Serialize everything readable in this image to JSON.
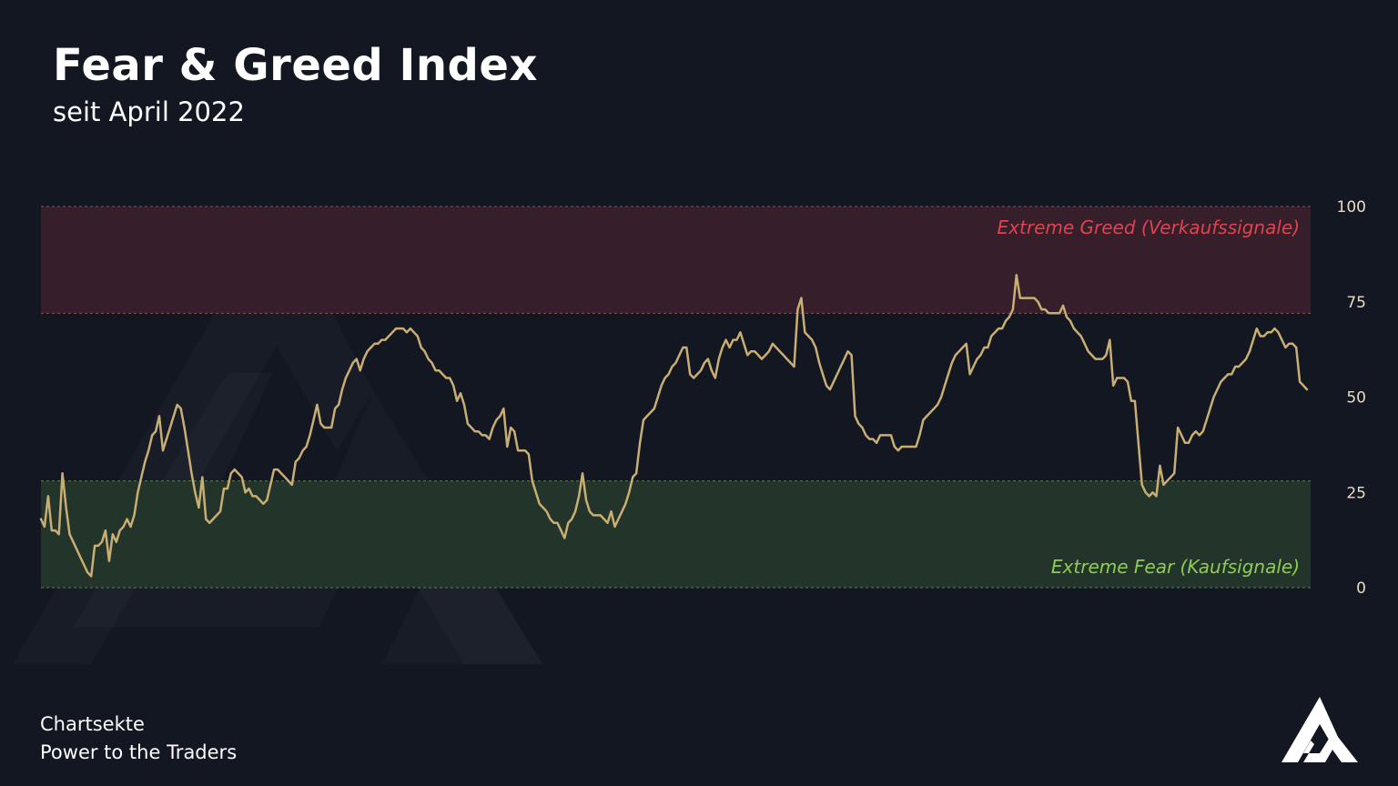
{
  "header": {
    "title": "Fear & Greed Index",
    "subtitle": "seit April 2022"
  },
  "footer": {
    "brand": "Chartsekte",
    "tagline": "Power to the Traders"
  },
  "zones": {
    "greed_label": "Extreme Greed (Verkaufssignale)",
    "fear_label": "Extreme Fear (Kaufsignale)",
    "greed_from": 72,
    "fear_to": 28
  },
  "colors": {
    "background": "#131722",
    "line": "#c9ae74",
    "greed_fill": "#361f2a",
    "greed_border": "#a8434f",
    "greed_text": "#e0434e",
    "fear_fill": "#23352b",
    "fear_border": "#5e7e3f",
    "fear_text": "#8fcc53",
    "axis_text": "#e6dcc7"
  },
  "chart_data": {
    "type": "line",
    "ylim": [
      0,
      100
    ],
    "yticks": [
      "0",
      "25",
      "50",
      "75",
      "100"
    ],
    "series": [
      {
        "values": [
          18,
          16,
          24,
          15,
          15,
          14,
          30,
          21,
          14,
          12,
          10,
          8,
          6,
          4,
          3,
          11,
          11,
          12,
          15,
          7,
          14,
          12,
          15,
          16,
          18,
          16,
          19,
          25,
          29,
          33,
          36,
          40,
          41,
          45,
          36,
          39,
          42,
          45,
          48,
          47,
          42,
          36,
          30,
          25,
          21,
          29,
          18,
          17,
          18,
          19,
          20,
          26,
          26,
          30,
          31,
          30,
          29,
          25,
          26,
          24,
          24,
          23,
          22,
          23,
          27,
          31,
          31,
          30,
          29,
          28,
          27,
          33,
          34,
          36,
          37,
          40,
          44,
          48,
          43,
          42,
          42,
          42,
          47,
          48,
          52,
          55,
          57,
          59,
          60,
          57,
          60,
          62,
          63,
          64,
          64,
          65,
          65,
          66,
          67,
          68,
          68,
          68,
          67,
          68,
          67,
          66,
          63,
          62,
          60,
          59,
          57,
          57,
          56,
          55,
          55,
          53,
          49,
          51,
          48,
          43,
          42,
          41,
          41,
          40,
          40,
          39,
          42,
          44,
          45,
          47,
          37,
          42,
          41,
          36,
          36,
          36,
          35,
          28,
          25,
          22,
          21,
          20,
          18,
          17,
          17,
          15,
          13,
          17,
          18,
          20,
          24,
          30,
          23,
          20,
          19,
          19,
          19,
          18,
          17,
          20,
          16,
          18,
          20,
          22,
          25,
          29,
          30,
          38,
          44,
          45,
          46,
          47,
          50,
          53,
          55,
          56,
          58,
          59,
          61,
          63,
          63,
          56,
          55,
          56,
          57,
          59,
          60,
          57,
          55,
          60,
          63,
          65,
          63,
          65,
          65,
          67,
          64,
          61,
          62,
          62,
          61,
          60,
          61,
          62,
          64,
          63,
          62,
          61,
          60,
          59,
          58,
          73,
          76,
          67,
          66,
          65,
          63,
          59,
          56,
          53,
          52,
          54,
          56,
          58,
          60,
          62,
          61,
          45,
          43,
          42,
          40,
          39,
          39,
          38,
          40,
          40,
          40,
          40,
          37,
          36,
          37,
          37,
          37,
          37,
          37,
          40,
          44,
          45,
          46,
          47,
          48,
          50,
          53,
          56,
          59,
          61,
          62,
          63,
          64,
          56,
          58,
          60,
          61,
          63,
          63,
          66,
          67,
          68,
          68,
          70,
          71,
          73,
          82,
          76,
          76,
          76,
          76,
          76,
          75,
          73,
          73,
          72,
          72,
          72,
          72,
          74,
          71,
          70,
          68,
          67,
          66,
          64,
          62,
          61,
          60,
          60,
          60,
          61,
          65,
          53,
          55,
          55,
          55,
          54,
          49,
          49,
          38,
          27,
          25,
          24,
          25,
          24,
          32,
          27,
          28,
          29,
          30,
          42,
          40,
          38,
          38,
          40,
          41,
          40,
          41,
          44,
          47,
          50,
          52,
          54,
          55,
          56,
          56,
          58,
          58,
          59,
          60,
          62,
          65,
          68,
          66,
          66,
          67,
          67,
          68,
          67,
          65,
          63,
          64,
          64,
          63,
          54,
          53,
          52
        ]
      }
    ]
  }
}
